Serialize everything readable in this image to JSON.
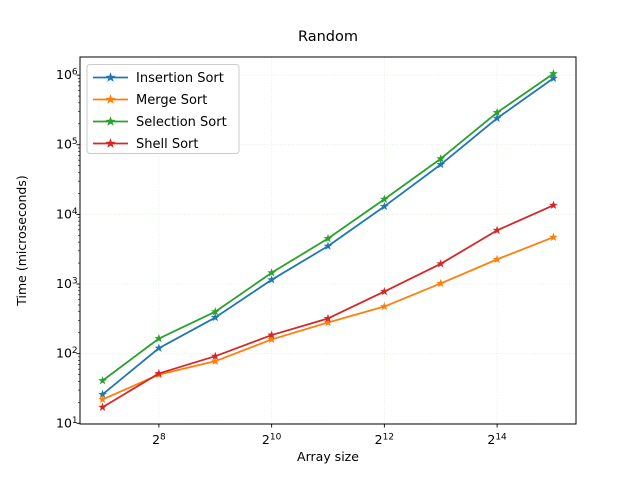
{
  "figure": {
    "background": "#ffffff"
  },
  "chart_data": {
    "type": "line",
    "title": "Random",
    "xlabel": "Array size",
    "ylabel": "Time (microseconds)",
    "x_scale": "log2",
    "y_scale": "log10",
    "grid": true,
    "grid_color": "#dff0da",
    "axis_color": "#000000",
    "marker": "star",
    "legend_position": "upper left",
    "x": [
      128,
      256,
      512,
      1024,
      2048,
      4096,
      8192,
      16384,
      32768
    ],
    "series": [
      {
        "name": "Insertion Sort",
        "color": "#1f77b4",
        "values": [
          26,
          120,
          330,
          1150,
          3500,
          13000,
          52000,
          240000,
          900000
        ]
      },
      {
        "name": "Merge Sort",
        "color": "#ff7f0e",
        "values": [
          22,
          50,
          78,
          160,
          280,
          475,
          1020,
          2260,
          4700
        ]
      },
      {
        "name": "Selection Sort",
        "color": "#2ca02c",
        "values": [
          41,
          165,
          400,
          1450,
          4500,
          16500,
          63000,
          290000,
          1050000
        ]
      },
      {
        "name": "Shell Sort",
        "color": "#d62728",
        "values": [
          17,
          52,
          92,
          185,
          320,
          780,
          1950,
          5900,
          13500
        ]
      }
    ],
    "x_ticks": {
      "base": "2",
      "exponents": [
        8,
        10,
        12,
        14
      ]
    },
    "y_ticks": {
      "base": "10",
      "exponents": [
        1,
        2,
        3,
        4,
        5,
        6
      ]
    },
    "xlim_log2": [
      6.6,
      15.4
    ],
    "ylim_log10": [
      0.99,
      6.26
    ]
  }
}
